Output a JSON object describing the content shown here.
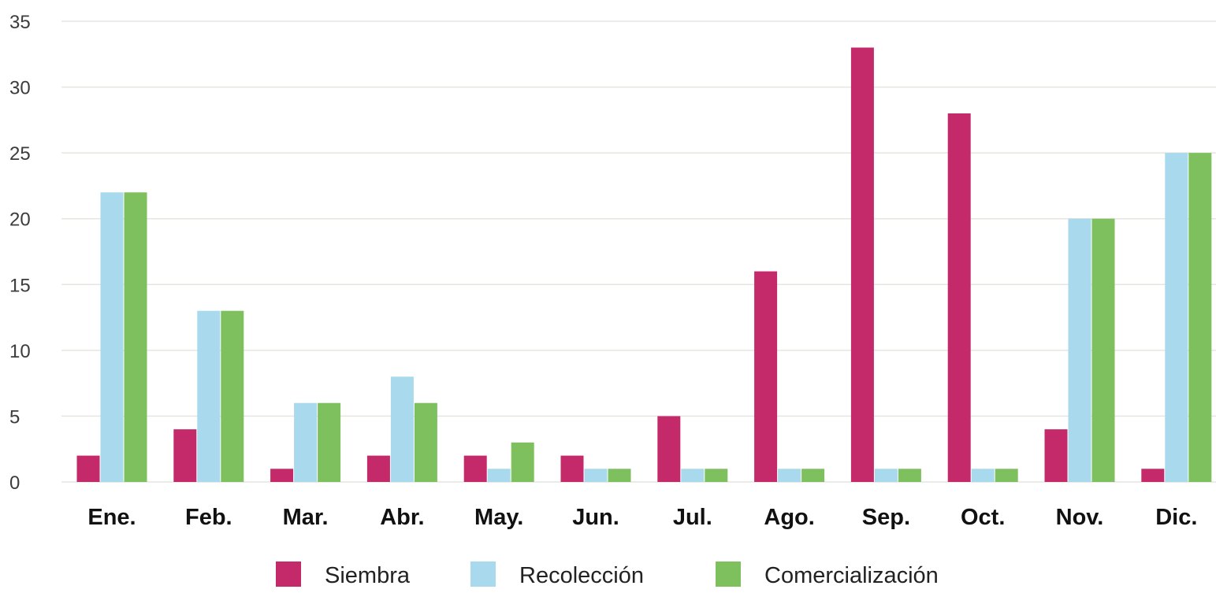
{
  "chart_data": {
    "type": "bar",
    "title": "",
    "xlabel": "",
    "ylabel": "",
    "ylim": [
      0,
      35
    ],
    "yticks": [
      0,
      5,
      10,
      15,
      20,
      25,
      30,
      35
    ],
    "grid": true,
    "legend_position": "bottom",
    "categories": [
      "Ene.",
      "Feb.",
      "Mar.",
      "Abr.",
      "May.",
      "Jun.",
      "Jul.",
      "Ago.",
      "Sep.",
      "Oct.",
      "Nov.",
      "Dic."
    ],
    "series": [
      {
        "name": "Siembra",
        "color": "#c4296a",
        "values": [
          2,
          4,
          1,
          2,
          2,
          2,
          5,
          16,
          33,
          28,
          4,
          1
        ]
      },
      {
        "name": "Recolección",
        "color": "#a8d9ec",
        "values": [
          22,
          13,
          6,
          8,
          1,
          1,
          1,
          1,
          1,
          1,
          20,
          25
        ]
      },
      {
        "name": "Comercialización",
        "color": "#7fc05e",
        "values": [
          22,
          13,
          6,
          6,
          3,
          1,
          1,
          1,
          1,
          1,
          20,
          25
        ]
      }
    ]
  }
}
